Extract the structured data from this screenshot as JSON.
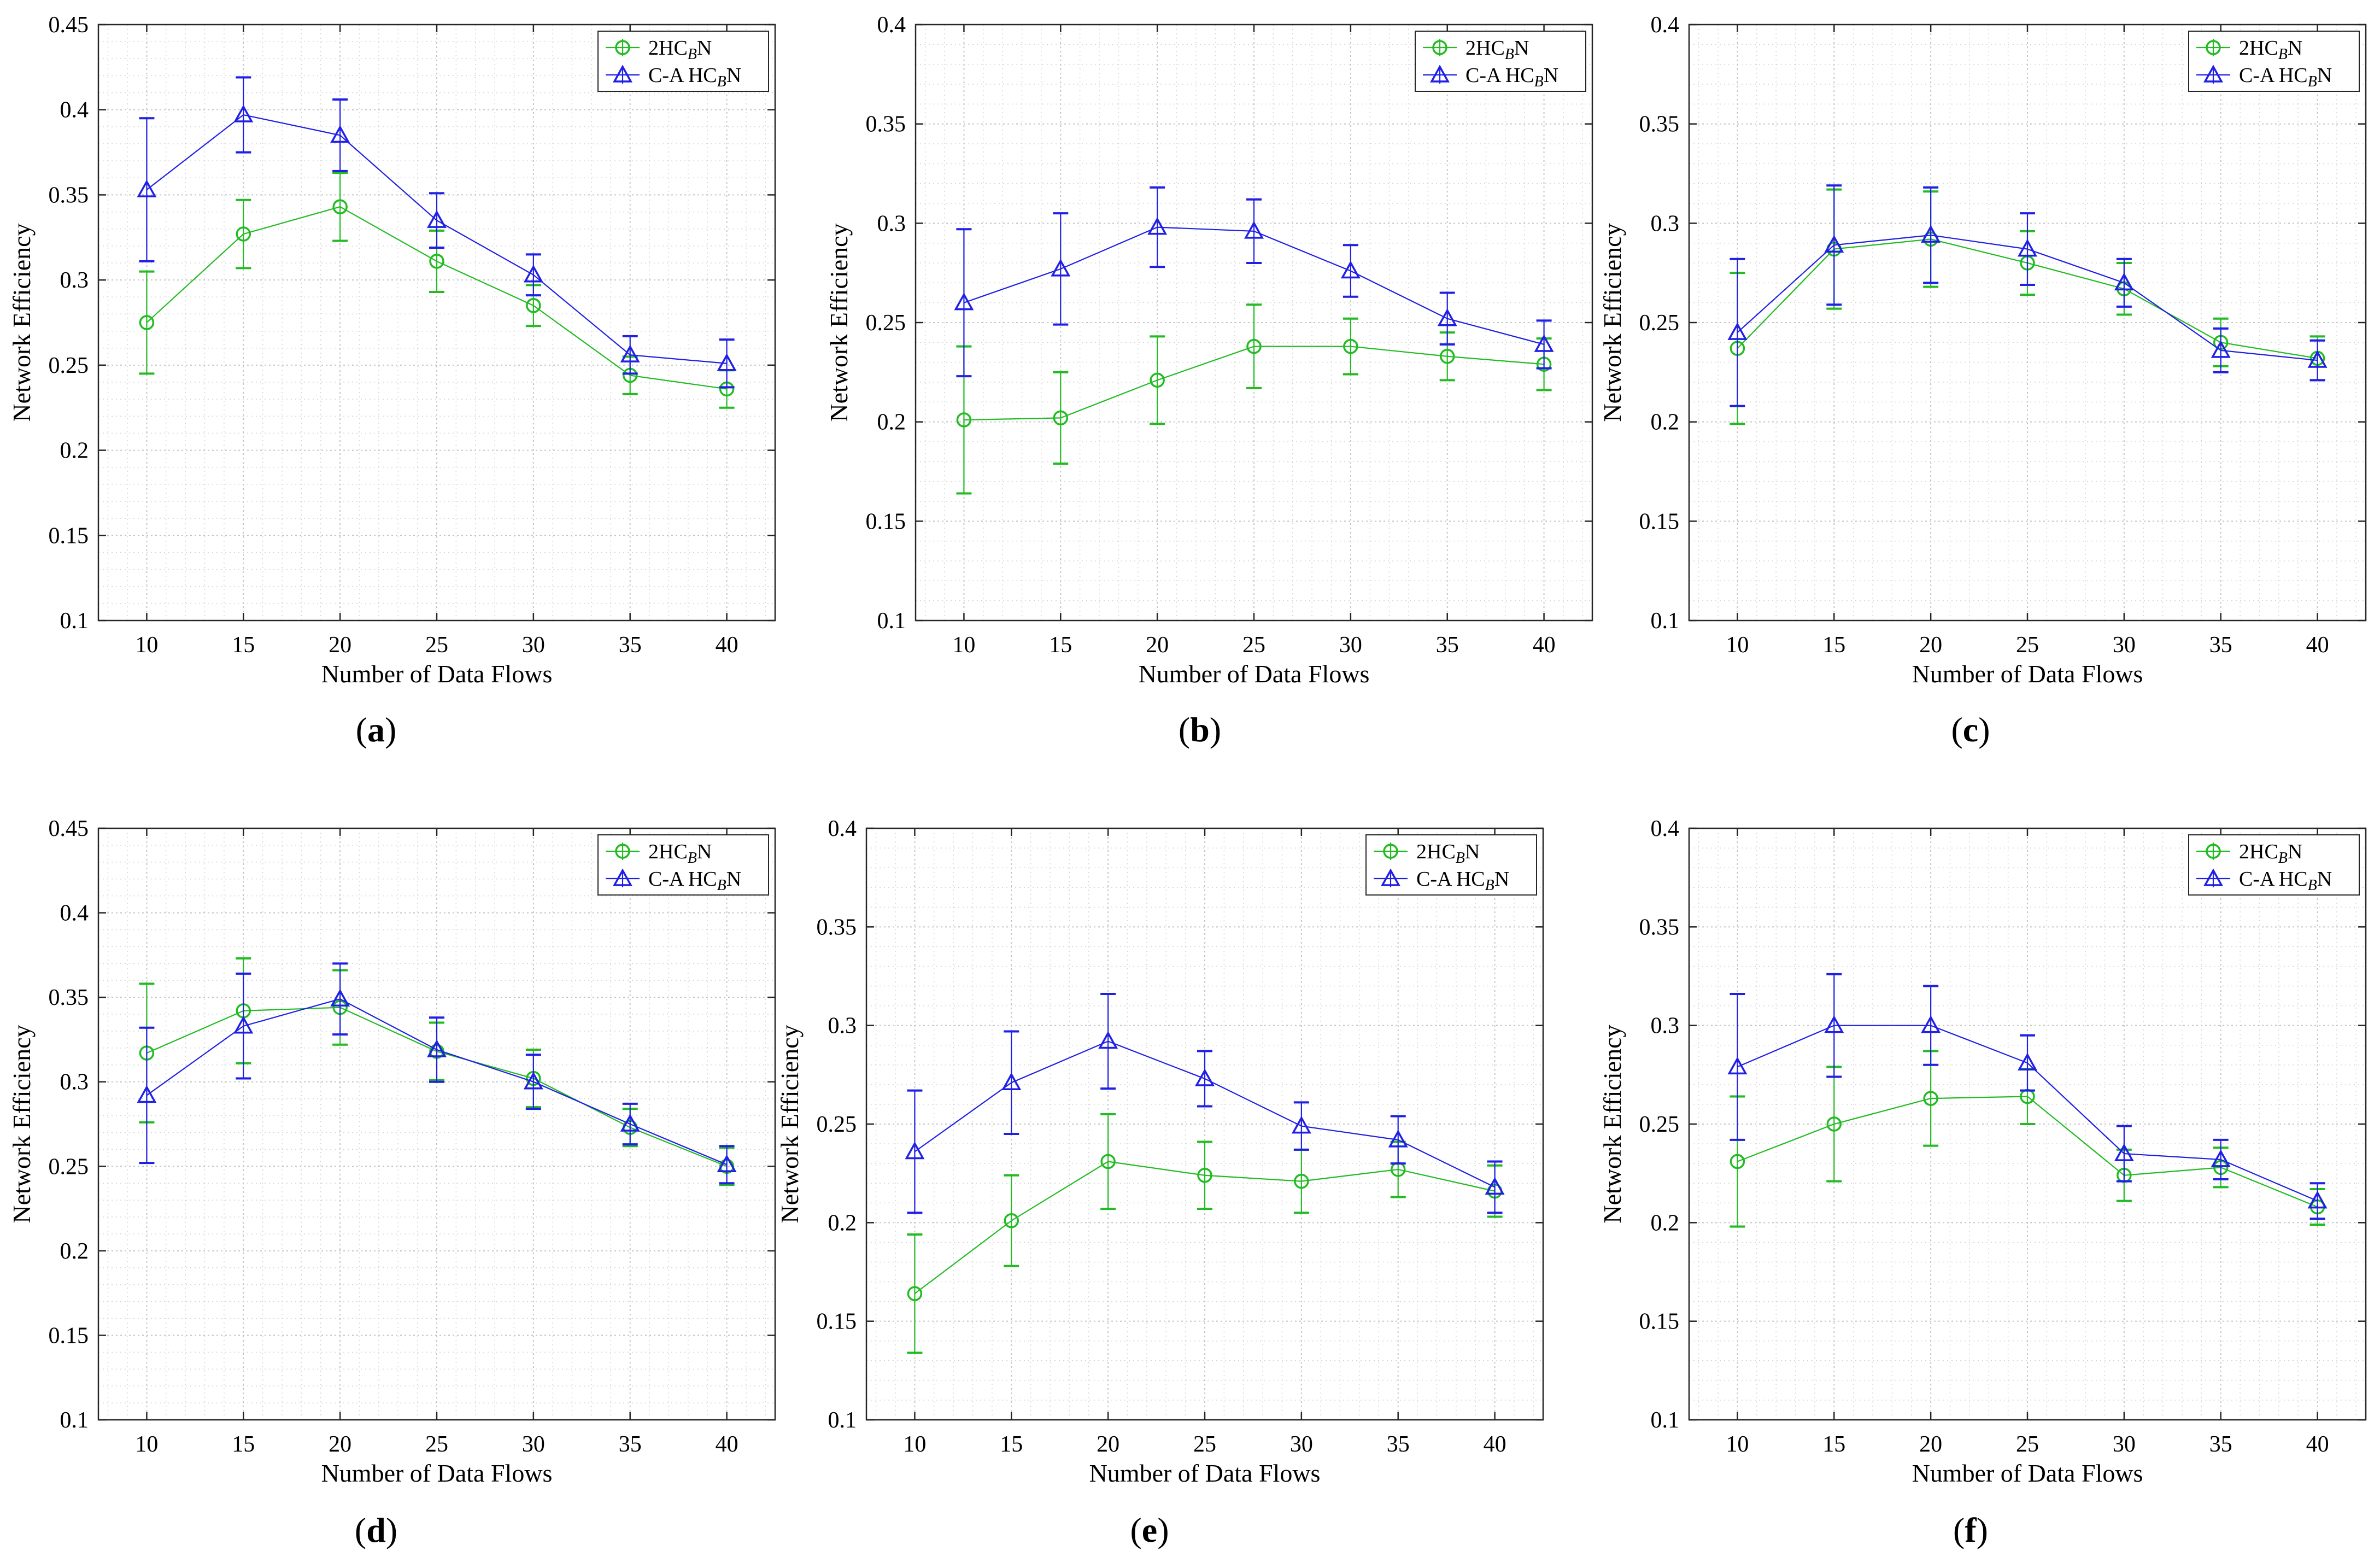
{
  "colors": {
    "series_green": "#22bb22",
    "series_blue": "#1f1fe6",
    "grid": "#d4d4d4",
    "axis": "#262626"
  },
  "chart_data": [
    {
      "panel": "(a)",
      "letter": "a",
      "type": "line",
      "xlabel": "Number of Data Flows",
      "ylabel": "Network Efficiency",
      "x": [
        10,
        15,
        20,
        25,
        30,
        35,
        40
      ],
      "xticks": [
        "10",
        "15",
        "20",
        "25",
        "30",
        "35",
        "40"
      ],
      "ylim": [
        0.1,
        0.45
      ],
      "yticks": [
        "0.1",
        "0.15",
        "0.2",
        "0.25",
        "0.3",
        "0.35",
        "0.4",
        "0.45"
      ],
      "legend_position": "top-right",
      "series": [
        {
          "name": "2HC",
          "name_sub": "B",
          "name_end": "N",
          "marker": "circle",
          "values": [
            0.275,
            0.327,
            0.343,
            0.311,
            0.285,
            0.244,
            0.236
          ],
          "err": [
            0.03,
            0.02,
            0.02,
            0.018,
            0.012,
            0.011,
            0.011
          ]
        },
        {
          "name": "C-A HC",
          "name_sub": "B",
          "name_end": "N",
          "marker": "triangle",
          "values": [
            0.353,
            0.397,
            0.385,
            0.335,
            0.303,
            0.256,
            0.251
          ],
          "err": [
            0.042,
            0.022,
            0.021,
            0.016,
            0.012,
            0.011,
            0.014
          ]
        }
      ]
    },
    {
      "panel": "(b)",
      "letter": "b",
      "type": "line",
      "xlabel": "Number of Data Flows",
      "ylabel": "Network Efficiency",
      "x": [
        10,
        15,
        20,
        25,
        30,
        35,
        40
      ],
      "xticks": [
        "10",
        "15",
        "20",
        "25",
        "30",
        "35",
        "40"
      ],
      "ylim": [
        0.1,
        0.4
      ],
      "yticks": [
        "0.1",
        "0.15",
        "0.2",
        "0.25",
        "0.3",
        "0.35",
        "0.4"
      ],
      "legend_position": "top-right",
      "series": [
        {
          "name": "2HC",
          "name_sub": "B",
          "name_end": "N",
          "marker": "circle",
          "values": [
            0.201,
            0.202,
            0.221,
            0.238,
            0.238,
            0.233,
            0.229
          ],
          "err": [
            0.037,
            0.023,
            0.022,
            0.021,
            0.014,
            0.012,
            0.013
          ]
        },
        {
          "name": "C-A HC",
          "name_sub": "B",
          "name_end": "N",
          "marker": "triangle",
          "values": [
            0.26,
            0.277,
            0.298,
            0.296,
            0.276,
            0.252,
            0.239
          ],
          "err": [
            0.037,
            0.028,
            0.02,
            0.016,
            0.013,
            0.013,
            0.012
          ]
        }
      ]
    },
    {
      "panel": "(c)",
      "letter": "c",
      "type": "line",
      "xlabel": "Number of Data Flows",
      "ylabel": "Network Efficiency",
      "x": [
        10,
        15,
        20,
        25,
        30,
        35,
        40
      ],
      "xticks": [
        "10",
        "15",
        "20",
        "25",
        "30",
        "35",
        "40"
      ],
      "ylim": [
        0.1,
        0.4
      ],
      "yticks": [
        "0.1",
        "0.15",
        "0.2",
        "0.25",
        "0.3",
        "0.35",
        "0.4"
      ],
      "legend_position": "top-right",
      "series": [
        {
          "name": "2HC",
          "name_sub": "B",
          "name_end": "N",
          "marker": "circle",
          "values": [
            0.237,
            0.287,
            0.292,
            0.28,
            0.267,
            0.24,
            0.232
          ],
          "err": [
            0.038,
            0.03,
            0.024,
            0.016,
            0.013,
            0.012,
            0.011
          ]
        },
        {
          "name": "C-A HC",
          "name_sub": "B",
          "name_end": "N",
          "marker": "triangle",
          "values": [
            0.245,
            0.289,
            0.294,
            0.287,
            0.27,
            0.236,
            0.231
          ],
          "err": [
            0.037,
            0.03,
            0.024,
            0.018,
            0.012,
            0.011,
            0.01
          ]
        }
      ]
    },
    {
      "panel": "(d)",
      "letter": "d",
      "type": "line",
      "xlabel": "Number of Data Flows",
      "ylabel": "Network Efficiency",
      "x": [
        10,
        15,
        20,
        25,
        30,
        35,
        40
      ],
      "xticks": [
        "10",
        "15",
        "20",
        "25",
        "30",
        "35",
        "40"
      ],
      "ylim": [
        0.1,
        0.45
      ],
      "yticks": [
        "0.1",
        "0.15",
        "0.2",
        "0.25",
        "0.3",
        "0.35",
        "0.4",
        "0.45"
      ],
      "legend_position": "top-right",
      "series": [
        {
          "name": "2HC",
          "name_sub": "B",
          "name_end": "N",
          "marker": "circle",
          "values": [
            0.317,
            0.342,
            0.344,
            0.318,
            0.302,
            0.273,
            0.25
          ],
          "err": [
            0.041,
            0.031,
            0.022,
            0.017,
            0.017,
            0.011,
            0.011
          ]
        },
        {
          "name": "C-A HC",
          "name_sub": "B",
          "name_end": "N",
          "marker": "triangle",
          "values": [
            0.292,
            0.333,
            0.349,
            0.319,
            0.3,
            0.275,
            0.251
          ],
          "err": [
            0.04,
            0.031,
            0.021,
            0.019,
            0.016,
            0.012,
            0.011
          ]
        }
      ]
    },
    {
      "panel": "(e)",
      "letter": "e",
      "type": "line",
      "xlabel": "Number of Data Flows",
      "ylabel": "Network Efficiency",
      "x": [
        10,
        15,
        20,
        25,
        30,
        35,
        40
      ],
      "xticks": [
        "10",
        "15",
        "20",
        "25",
        "30",
        "35",
        "40"
      ],
      "ylim": [
        0.1,
        0.4
      ],
      "yticks": [
        "0.1",
        "0.15",
        "0.2",
        "0.25",
        "0.3",
        "0.35",
        "0.4"
      ],
      "legend_position": "top-right",
      "series": [
        {
          "name": "2HC",
          "name_sub": "B",
          "name_end": "N",
          "marker": "circle",
          "values": [
            0.164,
            0.201,
            0.231,
            0.224,
            0.221,
            0.227,
            0.216
          ],
          "err": [
            0.03,
            0.023,
            0.024,
            0.017,
            0.016,
            0.014,
            0.013
          ]
        },
        {
          "name": "C-A HC",
          "name_sub": "B",
          "name_end": "N",
          "marker": "triangle",
          "values": [
            0.236,
            0.271,
            0.292,
            0.273,
            0.249,
            0.242,
            0.218
          ],
          "err": [
            0.031,
            0.026,
            0.024,
            0.014,
            0.012,
            0.012,
            0.013
          ]
        }
      ]
    },
    {
      "panel": "(f)",
      "letter": "f",
      "type": "line",
      "xlabel": "Number of Data Flows",
      "ylabel": "Network Efficiency",
      "x": [
        10,
        15,
        20,
        25,
        30,
        35,
        40
      ],
      "xticks": [
        "10",
        "15",
        "20",
        "25",
        "30",
        "35",
        "40"
      ],
      "ylim": [
        0.1,
        0.4
      ],
      "yticks": [
        "0.1",
        "0.15",
        "0.2",
        "0.25",
        "0.3",
        "0.35",
        "0.4"
      ],
      "legend_position": "top-right",
      "series": [
        {
          "name": "2HC",
          "name_sub": "B",
          "name_end": "N",
          "marker": "circle",
          "values": [
            0.231,
            0.25,
            0.263,
            0.264,
            0.224,
            0.228,
            0.208
          ],
          "err": [
            0.033,
            0.029,
            0.024,
            0.014,
            0.013,
            0.01,
            0.009
          ]
        },
        {
          "name": "C-A HC",
          "name_sub": "B",
          "name_end": "N",
          "marker": "triangle",
          "values": [
            0.279,
            0.3,
            0.3,
            0.281,
            0.235,
            0.232,
            0.211
          ],
          "err": [
            0.037,
            0.026,
            0.02,
            0.014,
            0.014,
            0.01,
            0.009
          ]
        }
      ]
    }
  ]
}
